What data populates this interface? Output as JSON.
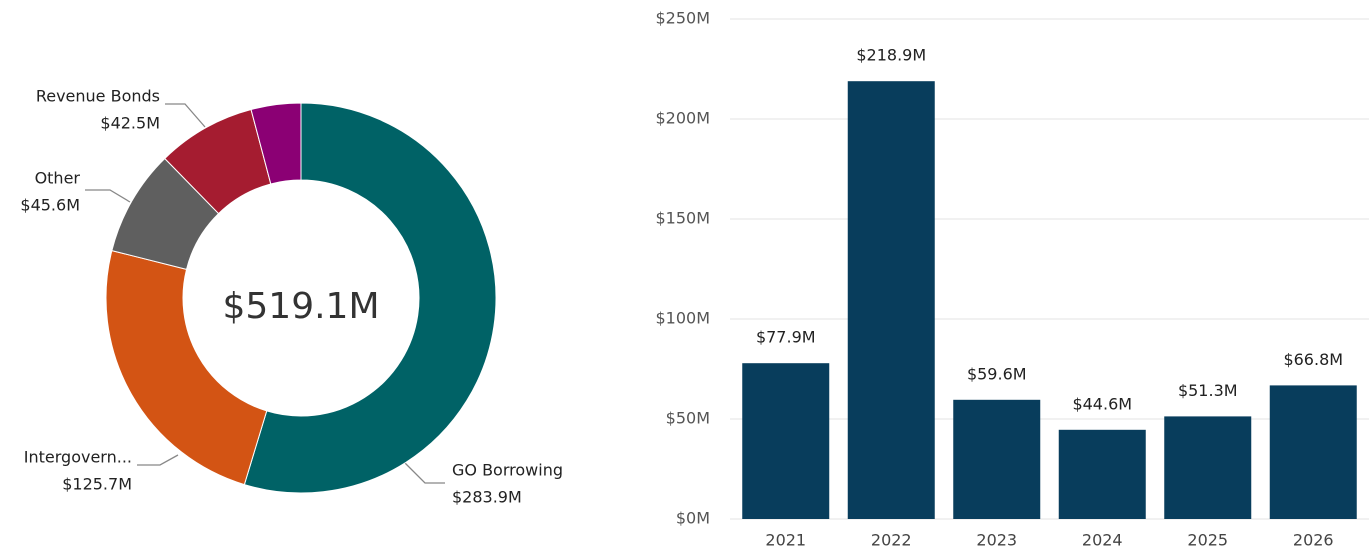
{
  "chart_data": [
    {
      "type": "donut",
      "center_label": "$519.1M",
      "categories": [
        "GO Borrowing",
        "Intergovern...",
        "Other",
        "Revenue Bonds",
        null
      ],
      "values": [
        283.9,
        125.7,
        45.6,
        42.5,
        21.4
      ],
      "value_labels": [
        "$283.9M",
        "$125.7M",
        "$45.6M",
        "$42.5M",
        null
      ],
      "colors": [
        "#006266",
        "#d35414",
        "#5f5f5f",
        "#a51c30",
        "#8b0074"
      ]
    },
    {
      "type": "bar",
      "categories": [
        "2021",
        "2022",
        "2023",
        "2024",
        "2025",
        "2026"
      ],
      "values": [
        77.9,
        218.9,
        59.6,
        44.6,
        51.3,
        66.8
      ],
      "value_labels": [
        "$77.9M",
        "$218.9M",
        "$59.6M",
        "$44.6M",
        "$51.3M",
        "$66.8M"
      ],
      "color": "#083d5c",
      "ylim": [
        0,
        250
      ],
      "yticks": [
        {
          "value": 0,
          "label": "$0M"
        },
        {
          "value": 50,
          "label": "$50M"
        },
        {
          "value": 100,
          "label": "$100M"
        },
        {
          "value": 150,
          "label": "$150M"
        },
        {
          "value": 200,
          "label": "$200M"
        },
        {
          "value": 250,
          "label": "$250M"
        }
      ],
      "grid": true
    }
  ]
}
